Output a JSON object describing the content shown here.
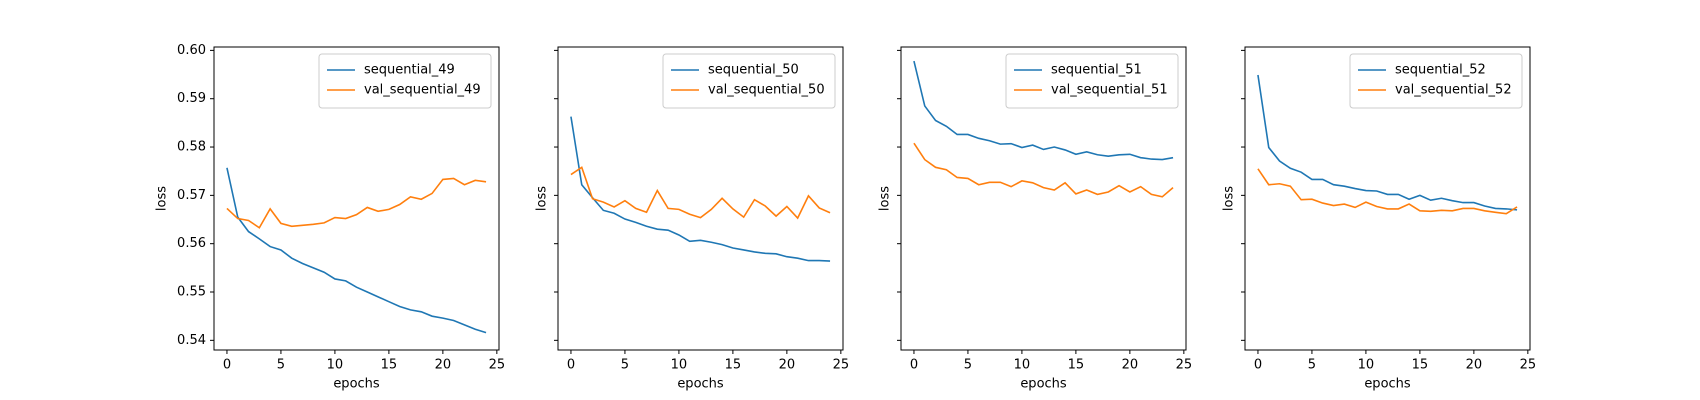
{
  "chart_data": [
    {
      "type": "line",
      "xlabel": "epochs",
      "ylabel": "loss",
      "x": [
        0,
        1,
        2,
        3,
        4,
        5,
        6,
        7,
        8,
        9,
        10,
        11,
        12,
        13,
        14,
        15,
        16,
        17,
        18,
        19,
        20,
        21,
        22,
        23,
        24
      ],
      "xlim": [
        -1.2,
        25.2
      ],
      "xticks": [
        0,
        5,
        10,
        15,
        20,
        25
      ],
      "ylim": [
        0.538,
        0.6007
      ],
      "yticks": [
        0.54,
        0.55,
        0.56,
        0.57,
        0.58,
        0.59,
        {
          "value": 0.6,
          "label": "0.60"
        }
      ],
      "legend": "upper right",
      "series": [
        {
          "name": "sequential_49",
          "color": "#1f77b4",
          "values": [
            0.5757,
            0.5655,
            0.5625,
            0.561,
            0.5594,
            0.5587,
            0.557,
            0.5559,
            0.555,
            0.5541,
            0.5527,
            0.5523,
            0.551,
            0.55,
            0.549,
            0.548,
            0.547,
            0.5463,
            0.5459,
            0.545,
            0.5446,
            0.5441,
            0.5432,
            0.5423,
            0.5416
          ]
        },
        {
          "name": "val_sequential_49",
          "color": "#ff7f0e",
          "values": [
            0.5673,
            0.5652,
            0.5648,
            0.5633,
            0.5672,
            0.5642,
            0.5636,
            0.5638,
            0.564,
            0.5643,
            0.5654,
            0.5652,
            0.566,
            0.5675,
            0.5667,
            0.5671,
            0.5681,
            0.5697,
            0.5692,
            0.5704,
            0.5733,
            0.5735,
            0.5722,
            0.5731,
            0.5728
          ]
        }
      ]
    },
    {
      "type": "line",
      "xlabel": "epochs",
      "ylabel": "loss",
      "x": [
        0,
        1,
        2,
        3,
        4,
        5,
        6,
        7,
        8,
        9,
        10,
        11,
        12,
        13,
        14,
        15,
        16,
        17,
        18,
        19,
        20,
        21,
        22,
        23,
        24
      ],
      "xlim": [
        -1.2,
        25.2
      ],
      "xticks": [
        0,
        5,
        10,
        15,
        20,
        25
      ],
      "ylim": [
        0.538,
        0.6007
      ],
      "legend": "upper right",
      "series": [
        {
          "name": "sequential_50",
          "color": "#1f77b4",
          "values": [
            0.5863,
            0.5722,
            0.5695,
            0.5669,
            0.5663,
            0.5651,
            0.5644,
            0.5636,
            0.563,
            0.5628,
            0.5618,
            0.5605,
            0.5607,
            0.5603,
            0.5598,
            0.5591,
            0.5587,
            0.5583,
            0.558,
            0.5579,
            0.5573,
            0.557,
            0.5565,
            0.5565,
            0.5564
          ]
        },
        {
          "name": "val_sequential_50",
          "color": "#ff7f0e",
          "values": [
            0.5743,
            0.5758,
            0.5693,
            0.5686,
            0.5676,
            0.5689,
            0.5673,
            0.5665,
            0.571,
            0.5673,
            0.5671,
            0.5661,
            0.5654,
            0.5671,
            0.5694,
            0.5672,
            0.5655,
            0.5691,
            0.5678,
            0.5657,
            0.5677,
            0.5653,
            0.5699,
            0.5674,
            0.5664
          ]
        }
      ]
    },
    {
      "type": "line",
      "xlabel": "epochs",
      "ylabel": "loss",
      "x": [
        0,
        1,
        2,
        3,
        4,
        5,
        6,
        7,
        8,
        9,
        10,
        11,
        12,
        13,
        14,
        15,
        16,
        17,
        18,
        19,
        20,
        21,
        22,
        23,
        24
      ],
      "xlim": [
        -1.2,
        25.2
      ],
      "xticks": [
        0,
        5,
        10,
        15,
        20,
        25
      ],
      "ylim": [
        0.538,
        0.6007
      ],
      "legend": "upper right",
      "series": [
        {
          "name": "sequential_51",
          "color": "#1f77b4",
          "values": [
            0.5978,
            0.5885,
            0.5855,
            0.5843,
            0.5826,
            0.5826,
            0.5818,
            0.5813,
            0.5806,
            0.5807,
            0.5799,
            0.5804,
            0.5795,
            0.58,
            0.5794,
            0.5785,
            0.579,
            0.5784,
            0.5781,
            0.5784,
            0.5785,
            0.5778,
            0.5775,
            0.5774,
            0.5778
          ]
        },
        {
          "name": "val_sequential_51",
          "color": "#ff7f0e",
          "values": [
            0.5808,
            0.5774,
            0.5758,
            0.5753,
            0.5737,
            0.5735,
            0.5722,
            0.5727,
            0.5727,
            0.5718,
            0.573,
            0.5726,
            0.5716,
            0.5711,
            0.5726,
            0.5703,
            0.5711,
            0.5702,
            0.5707,
            0.572,
            0.5707,
            0.5718,
            0.5702,
            0.5697,
            0.5716
          ]
        }
      ]
    },
    {
      "type": "line",
      "xlabel": "epochs",
      "ylabel": "loss",
      "x": [
        0,
        1,
        2,
        3,
        4,
        5,
        6,
        7,
        8,
        9,
        10,
        11,
        12,
        13,
        14,
        15,
        16,
        17,
        18,
        19,
        20,
        21,
        22,
        23,
        24
      ],
      "xlim": [
        -1.2,
        25.2
      ],
      "xticks": [
        0,
        5,
        10,
        15,
        20,
        25
      ],
      "ylim": [
        0.538,
        0.6007
      ],
      "legend": "upper right",
      "series": [
        {
          "name": "sequential_52",
          "color": "#1f77b4",
          "values": [
            0.5949,
            0.5799,
            0.5771,
            0.5756,
            0.5748,
            0.5733,
            0.5733,
            0.5722,
            0.5719,
            0.5714,
            0.571,
            0.5709,
            0.5702,
            0.5702,
            0.5692,
            0.57,
            0.569,
            0.5694,
            0.5689,
            0.5685,
            0.5685,
            0.5678,
            0.5673,
            0.5672,
            0.567
          ]
        },
        {
          "name": "val_sequential_52",
          "color": "#ff7f0e",
          "values": [
            0.5755,
            0.5722,
            0.5724,
            0.5719,
            0.5691,
            0.5692,
            0.5684,
            0.5679,
            0.5682,
            0.5675,
            0.5686,
            0.5677,
            0.5672,
            0.5672,
            0.5682,
            0.5668,
            0.5667,
            0.5669,
            0.5668,
            0.5673,
            0.5673,
            0.5668,
            0.5665,
            0.5662,
            0.5676
          ]
        }
      ]
    }
  ]
}
